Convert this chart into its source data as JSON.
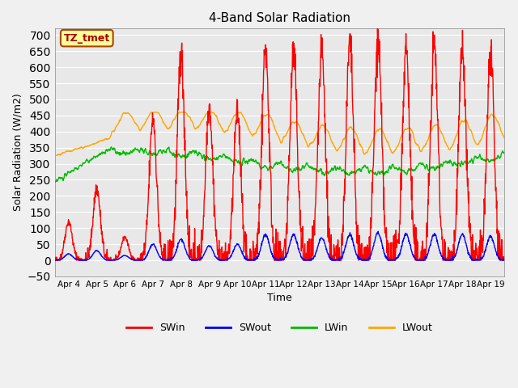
{
  "title": "4-Band Solar Radiation",
  "xlabel": "Time",
  "ylabel": "Solar Radiation (W/m2)",
  "ylim": [
    -50,
    720
  ],
  "colors": {
    "SWin": "#ff0000",
    "SWout": "#0000ff",
    "LWin": "#00bb00",
    "LWout": "#ffa500"
  },
  "annotation_text": "TZ_tmet",
  "annotation_bg": "#ffff99",
  "annotation_border": "#aa4400",
  "annotation_text_color": "#aa0000",
  "plot_bg": "#e8e8e8",
  "legend_labels": [
    "SWin",
    "SWout",
    "LWin",
    "LWout"
  ],
  "grid_color": "#ffffff",
  "linewidth": 1.0,
  "xtick_labels": [
    "Apr 4",
    "Apr 5",
    "Apr 6",
    "Apr 7",
    "Apr 8",
    "Apr 9",
    "Apr 10",
    "Apr 11",
    "Apr 12",
    "Apr 13",
    "Apr 14",
    "Apr 15",
    "Apr 16",
    "Apr 17",
    "Apr 18",
    "Apr 19"
  ],
  "n_days": 16
}
